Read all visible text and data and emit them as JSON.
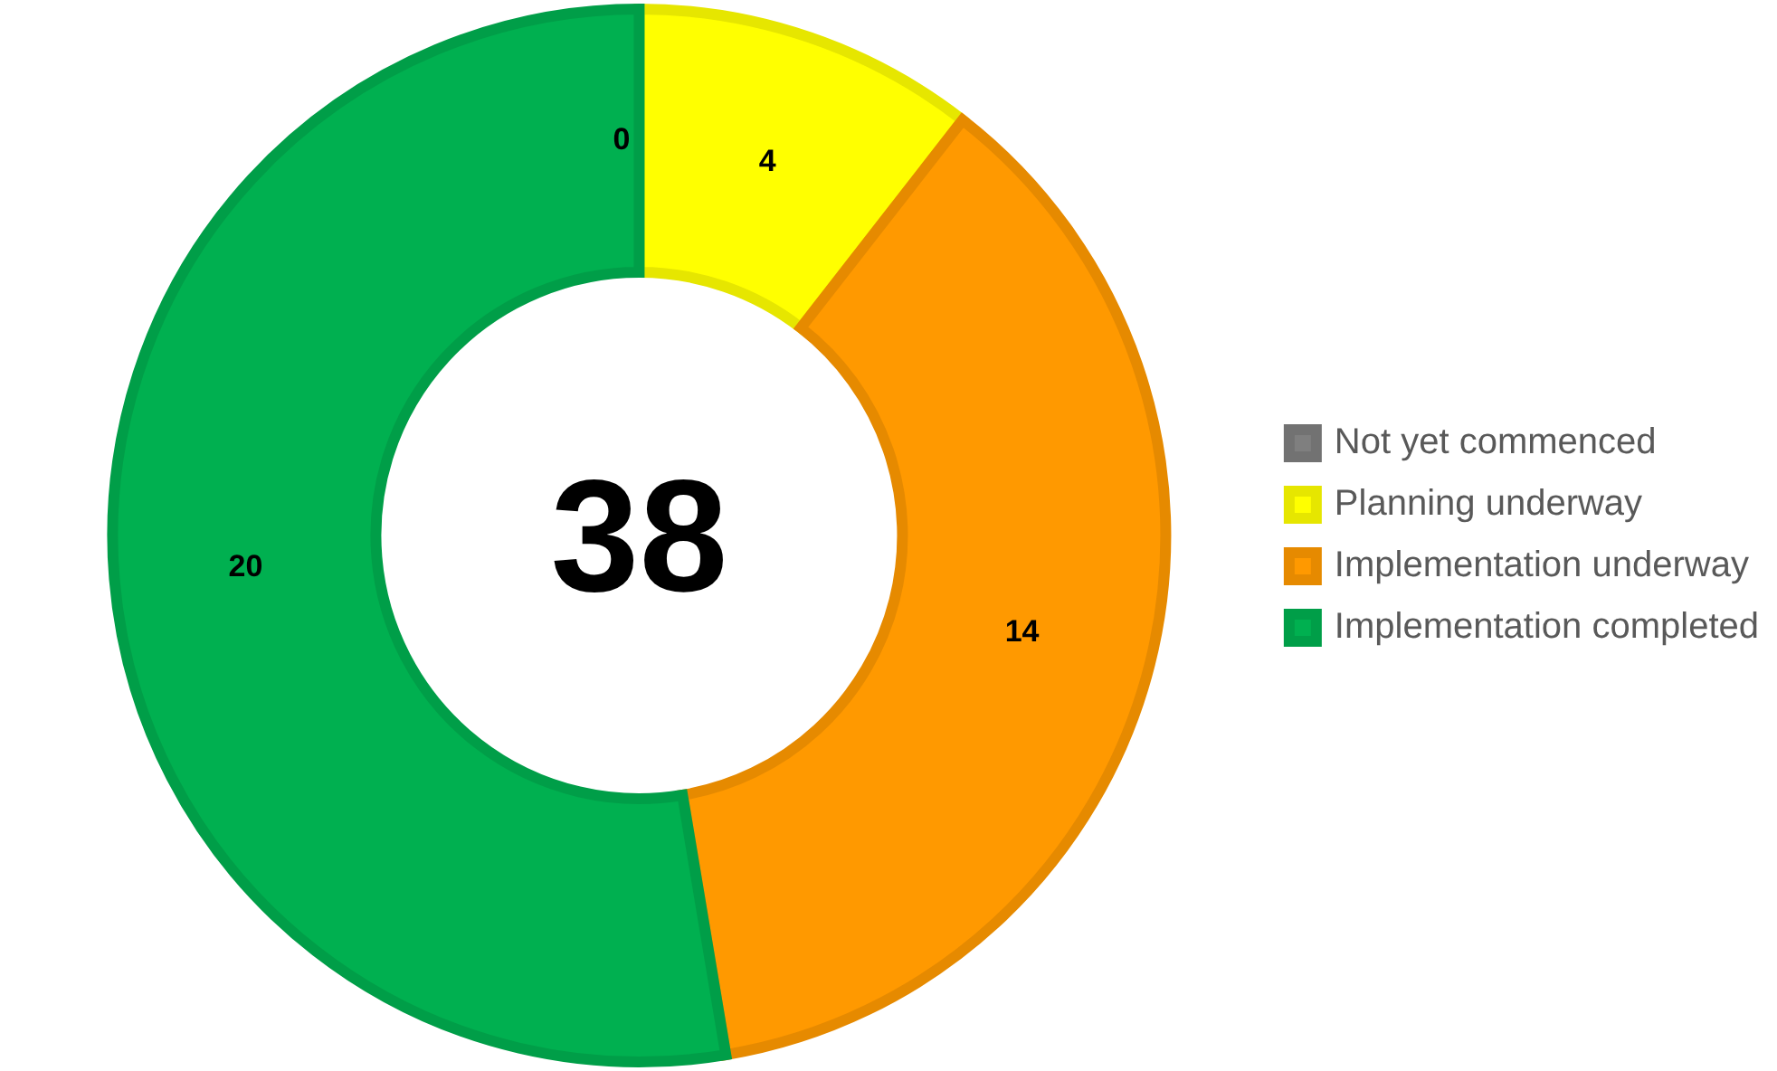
{
  "chart_data": {
    "type": "donut",
    "categories": [
      "Not yet commenced",
      "Planning underway",
      "Implementation underway",
      "Implementation completed"
    ],
    "values": [
      0,
      4,
      14,
      20
    ],
    "colors": [
      "#7f7f7f",
      "#ffff00",
      "#ff9900",
      "#00b050"
    ],
    "value_labels": [
      "0",
      "4",
      "14",
      "20"
    ],
    "legend": "right",
    "annotations": [
      "38"
    ]
  }
}
